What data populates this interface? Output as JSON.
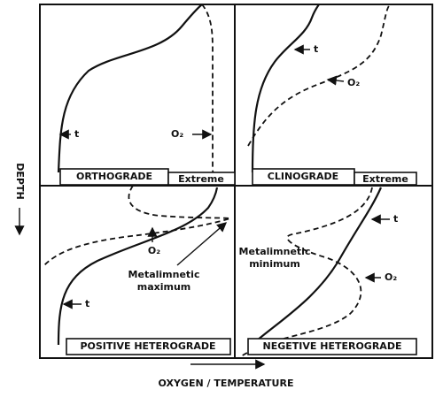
{
  "axes": {
    "y_label": "DEPTH",
    "x_label": "OXYGEN / TEMPERATURE"
  },
  "panels": [
    {
      "label": "ORTHOGRADE",
      "tag": "Extreme",
      "curves": [
        {
          "label": "t"
        },
        {
          "label": "O₂"
        }
      ]
    },
    {
      "label": "CLINOGRADE",
      "tag": "Extreme",
      "curves": [
        {
          "label": "t"
        },
        {
          "label": "O₂"
        }
      ]
    },
    {
      "label": "POSITIVE HETEROGRADE",
      "curves": [
        {
          "label": "t"
        },
        {
          "label": "O₂"
        }
      ],
      "annotation": [
        "Metalimnetic",
        "maximum"
      ]
    },
    {
      "label": "NEGETIVE HETEROGRADE",
      "curves": [
        {
          "label": "t"
        },
        {
          "label": "O₂"
        }
      ],
      "annotation": [
        "Metalimnetic",
        "minimum"
      ]
    }
  ]
}
